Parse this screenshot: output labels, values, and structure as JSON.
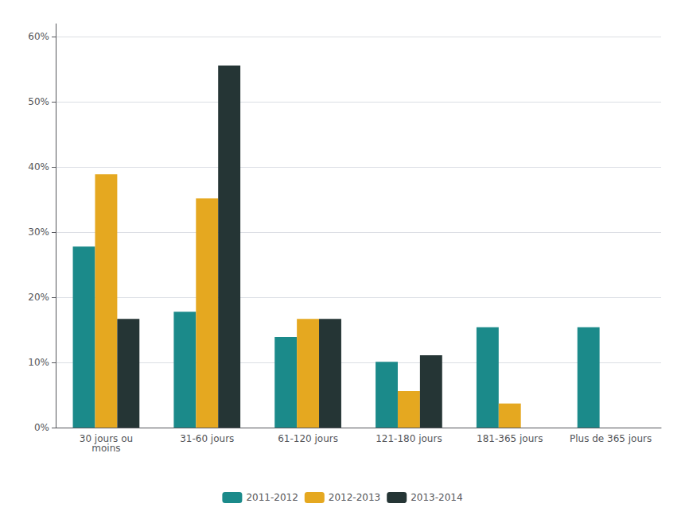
{
  "chart_data": {
    "type": "bar",
    "categories": [
      "30 jours ou\nmoins",
      "31-60 jours",
      "61-120 jours",
      "121-180 jours",
      "181-365 jours",
      "Plus de 365 jours"
    ],
    "series": [
      {
        "name": "2011-2012",
        "color": "#1b8a8a",
        "values": [
          0.278,
          0.178,
          0.139,
          0.101,
          0.154,
          0.154
        ]
      },
      {
        "name": "2012-2013",
        "color": "#e5a820",
        "values": [
          0.389,
          0.352,
          0.167,
          0.056,
          0.037,
          0.0
        ]
      },
      {
        "name": "2013-2014",
        "color": "#253535",
        "values": [
          0.167,
          0.556,
          0.167,
          0.111,
          0.0,
          0.0
        ]
      }
    ],
    "ylim": [
      0,
      0.62
    ],
    "yticks": [
      {
        "value": 0.0,
        "label": "0%"
      },
      {
        "value": 0.1,
        "label": "10%"
      },
      {
        "value": 0.2,
        "label": "20%"
      },
      {
        "value": 0.3,
        "label": "30%"
      },
      {
        "value": 0.4,
        "label": "40%"
      },
      {
        "value": 0.5,
        "label": "50%"
      },
      {
        "value": 0.6,
        "label": "60%"
      }
    ],
    "grid": true,
    "legend": "bottom"
  }
}
